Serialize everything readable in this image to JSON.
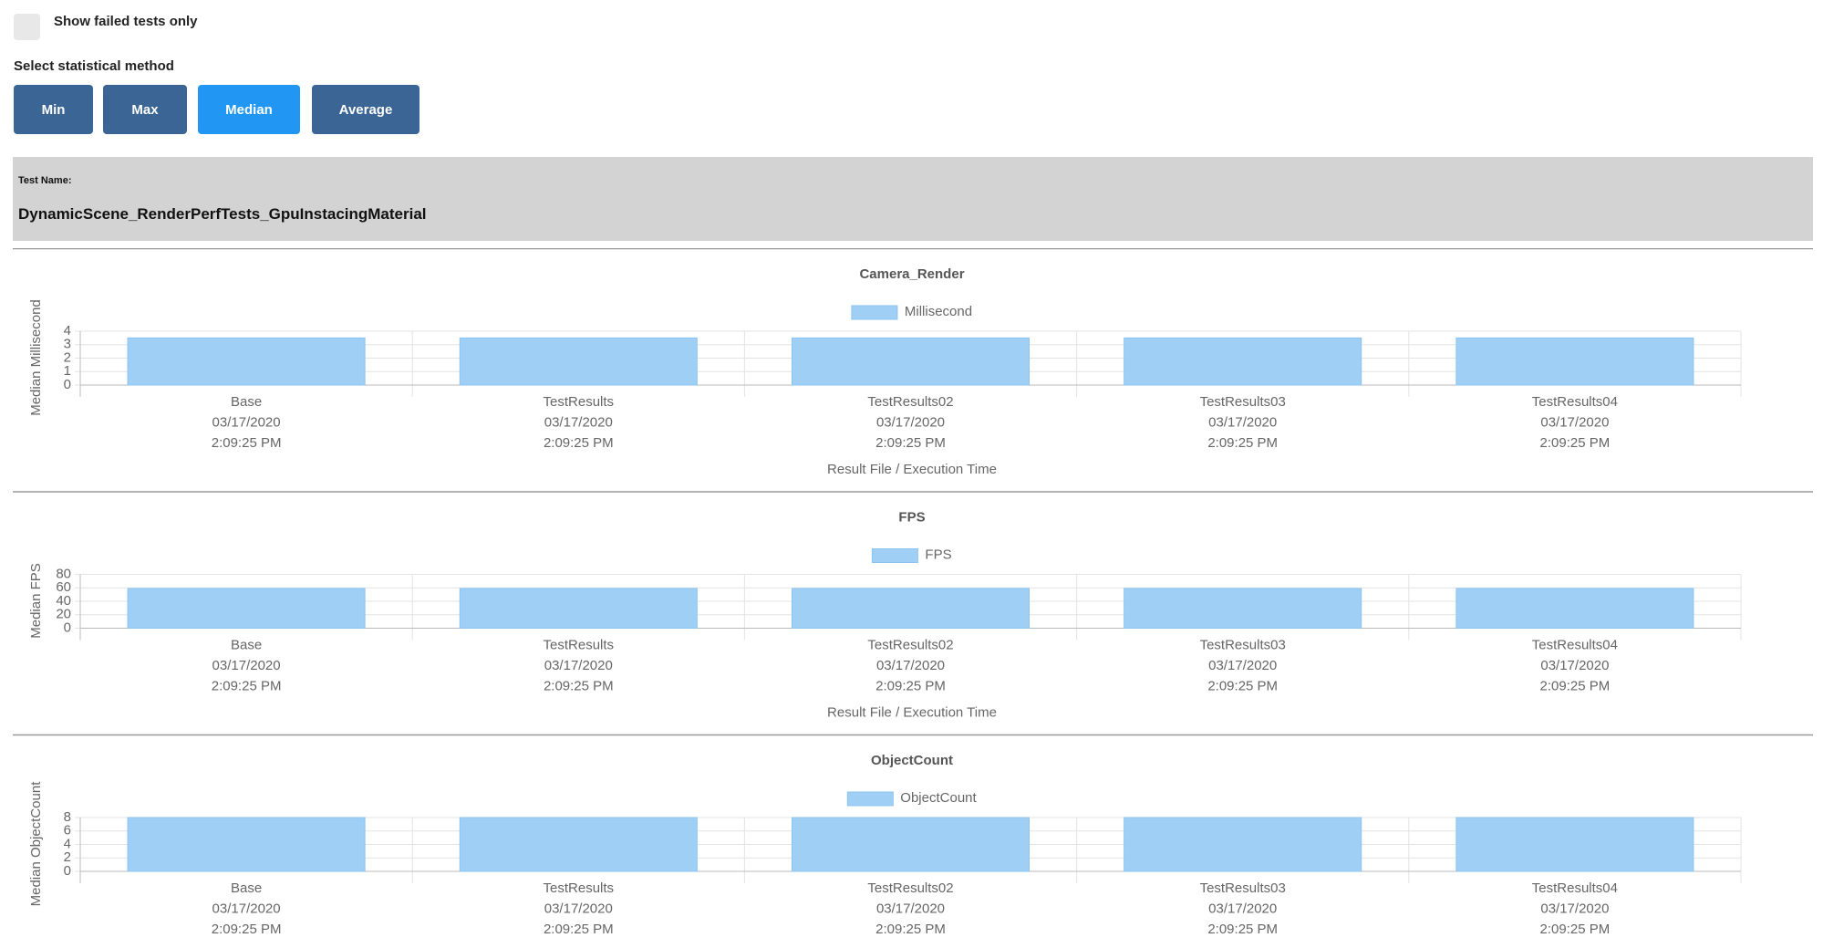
{
  "controls": {
    "checkbox_label": "Show failed tests only",
    "method_label": "Select statistical method",
    "buttons": [
      "Min",
      "Max",
      "Median",
      "Average"
    ],
    "active_button": "Median"
  },
  "test": {
    "label": "Test Name:",
    "name": "DynamicScene_RenderPerfTests_GpuInstacingMaterial"
  },
  "chart_data": [
    {
      "type": "bar",
      "title": "Camera_Render",
      "categories": [
        [
          "Base",
          "03/17/2020",
          "2:09:25 PM"
        ],
        [
          "TestResults",
          "03/17/2020",
          "2:09:25 PM"
        ],
        [
          "TestResults02",
          "03/17/2020",
          "2:09:25 PM"
        ],
        [
          "TestResults03",
          "03/17/2020",
          "2:09:25 PM"
        ],
        [
          "TestResults04",
          "03/17/2020",
          "2:09:25 PM"
        ]
      ],
      "series": [
        {
          "name": "Millisecond",
          "color": "#a0cff5",
          "values": [
            3.5,
            3.5,
            3.5,
            3.5,
            3.5
          ]
        }
      ],
      "ylabel": "Median Millisecond",
      "xlabel": "Result File / Execution Time",
      "ylim": [
        0,
        4
      ],
      "yticks": [
        0,
        1,
        2,
        3,
        4
      ],
      "grid": true
    },
    {
      "type": "bar",
      "title": "FPS",
      "categories": [
        [
          "Base",
          "03/17/2020",
          "2:09:25 PM"
        ],
        [
          "TestResults",
          "03/17/2020",
          "2:09:25 PM"
        ],
        [
          "TestResults02",
          "03/17/2020",
          "2:09:25 PM"
        ],
        [
          "TestResults03",
          "03/17/2020",
          "2:09:25 PM"
        ],
        [
          "TestResults04",
          "03/17/2020",
          "2:09:25 PM"
        ]
      ],
      "series": [
        {
          "name": "FPS",
          "color": "#a0cff5",
          "values": [
            59,
            59,
            59,
            59,
            59
          ]
        }
      ],
      "ylabel": "Median FPS",
      "xlabel": "Result File / Execution Time",
      "ylim": [
        0,
        80
      ],
      "yticks": [
        0,
        20,
        40,
        60,
        80
      ],
      "grid": true
    },
    {
      "type": "bar",
      "title": "ObjectCount",
      "categories": [
        [
          "Base",
          "03/17/2020",
          "2:09:25 PM"
        ],
        [
          "TestResults",
          "03/17/2020",
          "2:09:25 PM"
        ],
        [
          "TestResults02",
          "03/17/2020",
          "2:09:25 PM"
        ],
        [
          "TestResults03",
          "03/17/2020",
          "2:09:25 PM"
        ],
        [
          "TestResults04",
          "03/17/2020",
          "2:09:25 PM"
        ]
      ],
      "series": [
        {
          "name": "ObjectCount",
          "color": "#a0cff5",
          "values": [
            8,
            8,
            8,
            8,
            8
          ]
        }
      ],
      "ylabel": "Median ObjectCount",
      "ylim": [
        0,
        8
      ],
      "yticks": [
        0,
        2,
        4,
        6,
        8
      ],
      "grid": true
    }
  ]
}
